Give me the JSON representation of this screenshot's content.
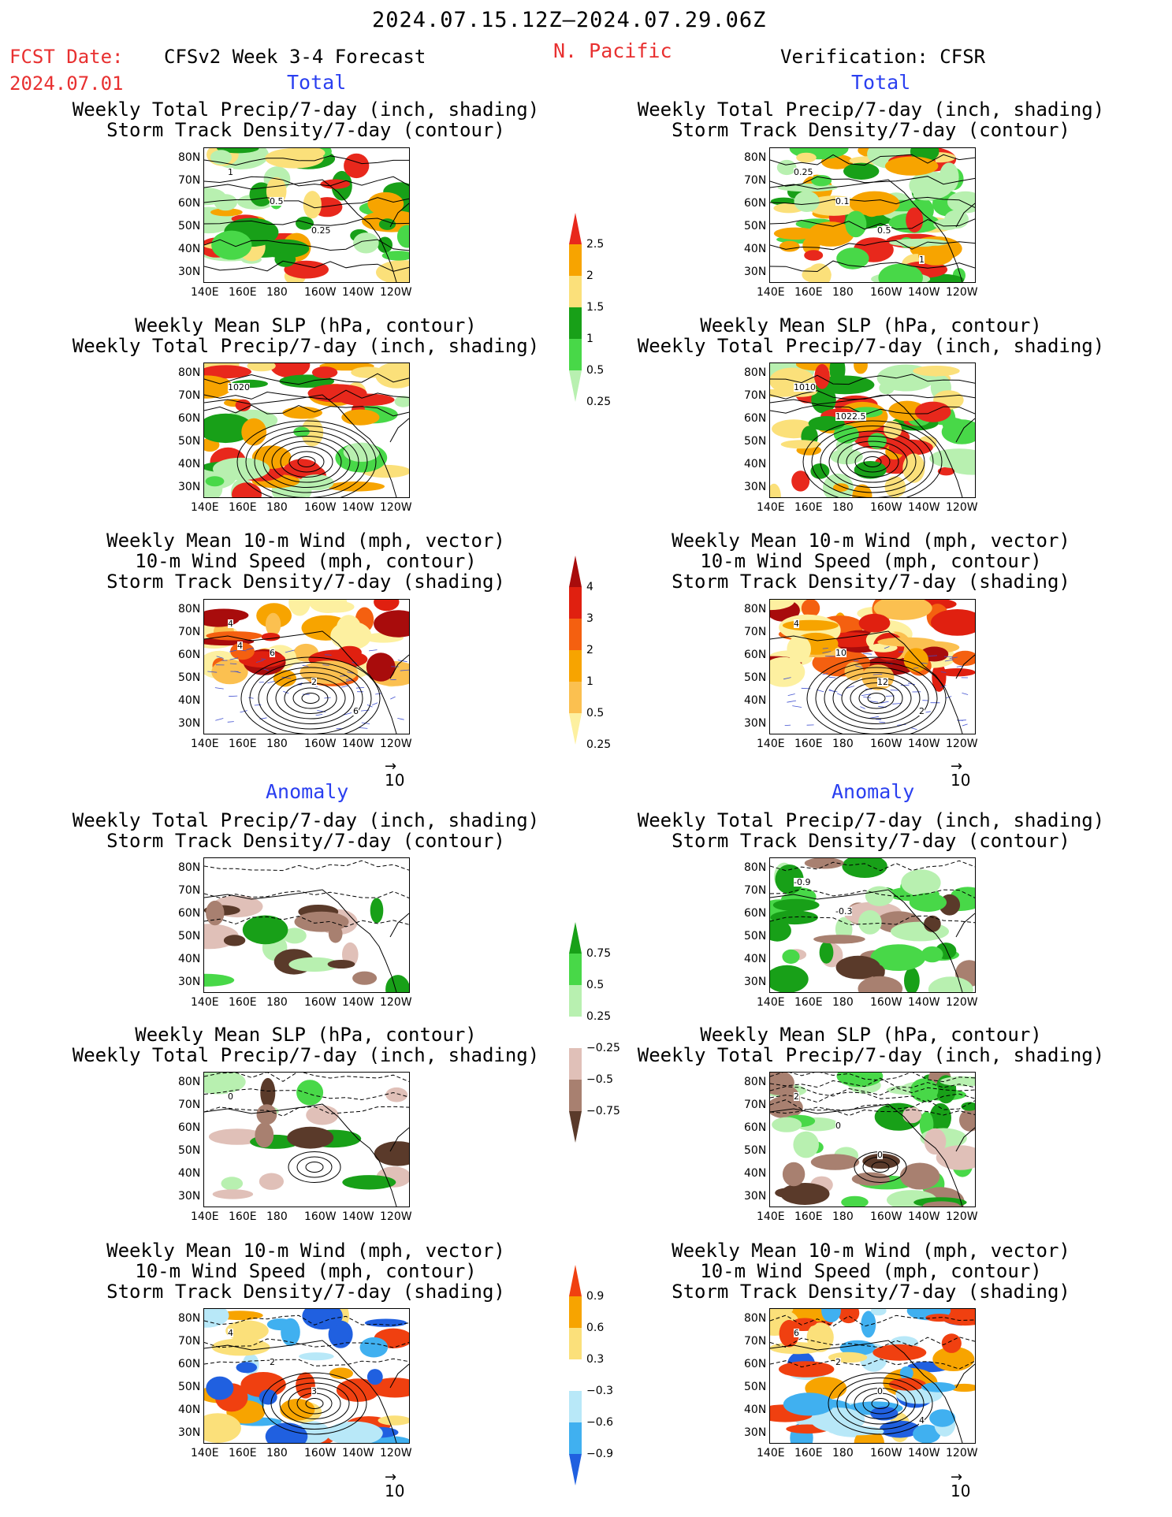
{
  "header": {
    "date_range": "2024.07.15.12Z–2024.07.29.06Z",
    "fcst_label": "FCST Date:",
    "fcst_date": "2024.07.01",
    "model": "CFSv2 Week 3-4 Forecast",
    "region": "N. Pacific",
    "verification": "Verification: CFSR"
  },
  "sections": {
    "total_left": "Total",
    "total_right": "Total",
    "anomaly_left": "Anomaly",
    "anomaly_right": "Anomaly"
  },
  "titles": {
    "precip_track": [
      "Weekly Total Precip/7-day (inch, shading)",
      "Storm Track Density/7-day (contour)"
    ],
    "slp_precip": [
      "Weekly Mean SLP (hPa, contour)",
      "Weekly Total Precip/7-day (inch, shading)"
    ],
    "wind_track": [
      "Weekly Mean 10-m Wind (mph, vector)",
      "10-m Wind Speed (mph, contour)",
      "Storm Track Density/7-day (shading)"
    ]
  },
  "axes": {
    "y_ticks": [
      "80N",
      "70N",
      "60N",
      "50N",
      "40N",
      "30N"
    ],
    "x_ticks": [
      "140E",
      "160E",
      "180",
      "160W",
      "140W",
      "120W"
    ]
  },
  "vector_ref": "10",
  "colorbars": {
    "precip_total": {
      "labels": [
        "2.5",
        "2",
        "1.5",
        "1",
        "0.5",
        "0.25"
      ],
      "colors": [
        "#e8281c",
        "#f7a400",
        "#fbe07a",
        "#18a018",
        "#48d848",
        "#b8f0b0"
      ]
    },
    "track_total": {
      "labels": [
        "4",
        "3",
        "2",
        "1",
        "0.5",
        "0.25"
      ],
      "colors": [
        "#a80c0c",
        "#e02010",
        "#f46010",
        "#f7a400",
        "#fbc050",
        "#fdf0a0"
      ]
    },
    "precip_anom": {
      "labels": [
        "0.75",
        "0.5",
        "0.25",
        "−0.25",
        "−0.5",
        "−0.75"
      ],
      "colors": [
        "#18a018",
        "#48d848",
        "#b8f0b0",
        "#ffffff",
        "#e0c0b8",
        "#a88070",
        "#5a3a2a"
      ]
    },
    "track_anom": {
      "labels": [
        "0.9",
        "0.6",
        "0.3",
        "−0.3",
        "−0.6",
        "−0.9"
      ],
      "colors": [
        "#f04010",
        "#f7a400",
        "#fbe07a",
        "#ffffff",
        "#b8e8f8",
        "#40b0f0",
        "#2060e0"
      ]
    }
  },
  "contour_labels": {
    "fc_precip_track": [
      "1",
      "0.5",
      "0.25"
    ],
    "obs_precip_track": [
      "0.25",
      "0.1",
      "0.5",
      "1"
    ],
    "fc_slp": [
      "1020"
    ],
    "obs_slp": [
      "1010",
      "1022.5"
    ],
    "fc_wind": [
      "4",
      "6",
      "2",
      "6",
      "4"
    ],
    "obs_wind": [
      "4",
      "10",
      "12",
      "2"
    ],
    "obs_precip_track_anom": [
      "-0.9",
      "-0.3"
    ],
    "fc_slp_anom": [
      "0"
    ],
    "obs_slp_anom": [
      "2",
      "0",
      "0"
    ],
    "fc_wind_anom": [
      "4",
      "2",
      "3"
    ],
    "obs_wind_anom": [
      "6",
      "2",
      "0",
      "4"
    ]
  },
  "colors": {
    "red": "#e83030",
    "blue": "#2a3ff0"
  }
}
